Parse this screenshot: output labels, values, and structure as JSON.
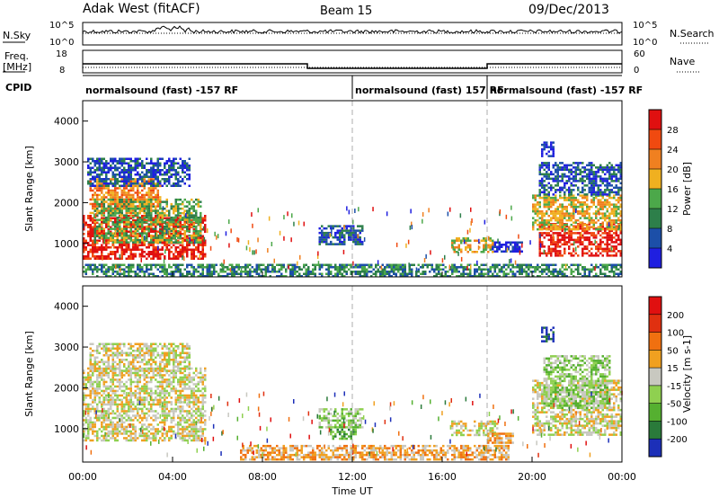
{
  "header": {
    "station": "Adak West (fitACF)",
    "beam": "Beam 15",
    "date": "09/Dec/2013"
  },
  "top_panels": {
    "nsky_label": "N.Sky",
    "nsky_ticks": [
      "10^5",
      "10^0"
    ],
    "nsearch_label": "N.Search",
    "nsearch_ticks": [
      "10^5",
      "10^0"
    ],
    "freq_label": "Freq.",
    "freq_unit": "[MHz]",
    "freq_ticks": [
      "18",
      "8"
    ],
    "nave_label": "Nave",
    "nave_ticks": [
      "60",
      "0"
    ],
    "cpid_label": "CPID",
    "cpid_segments": [
      {
        "label": "normalsound (fast) -157 RF",
        "start_h": 0,
        "end_h": 12
      },
      {
        "label": "normalsound (fast) 157 RF",
        "start_h": 12,
        "end_h": 18
      },
      {
        "label": "normalsound (fast) -157 RF",
        "start_h": 18,
        "end_h": 24
      }
    ],
    "freq_steps": [
      {
        "start_h": 0,
        "end_h": 10,
        "mhz": 12
      },
      {
        "start_h": 10,
        "end_h": 18,
        "mhz": 10
      },
      {
        "start_h": 18,
        "end_h": 24,
        "mhz": 12
      }
    ],
    "freq_range": [
      8,
      18
    ]
  },
  "power_colorbar": {
    "label": "Power [dB]",
    "ticks": [
      "28",
      "24",
      "20",
      "16",
      "12",
      "8",
      "4"
    ],
    "colors": [
      "#1f1fe0",
      "#1c4fa8",
      "#2d7f4a",
      "#4ca84a",
      "#f0b020",
      "#f08020",
      "#f04a10",
      "#e01010"
    ]
  },
  "velocity_colorbar": {
    "label": "Velocity [m s-1]",
    "ticks": [
      "200",
      "100",
      "50",
      "15",
      "-15",
      "-50",
      "-100",
      "-200"
    ],
    "colors": [
      "#1c2fb8",
      "#2a7a3a",
      "#55b030",
      "#8fd050",
      "#c8c8c0",
      "#f0a020",
      "#f07010",
      "#e03010",
      "#e01010"
    ]
  },
  "chart_data": [
    {
      "type": "heatmap",
      "name": "power",
      "ylabel": "Slant Range [km]",
      "xlim": [
        0,
        24
      ],
      "ylim": [
        180,
        4500
      ],
      "yticks": [
        "4000",
        "3000",
        "2000",
        "1000"
      ],
      "regions": [
        {
          "t0": 0.0,
          "t1": 5.5,
          "r0": 600,
          "r1": 1700,
          "level": 7
        },
        {
          "t0": 0.3,
          "t1": 3.5,
          "r0": 1700,
          "r1": 2600,
          "level": 5
        },
        {
          "t0": 0.5,
          "t1": 5.3,
          "r0": 1000,
          "r1": 2100,
          "level": 3
        },
        {
          "t0": 0.2,
          "t1": 4.8,
          "r0": 2400,
          "r1": 3100,
          "level": 1
        },
        {
          "t0": 10.5,
          "t1": 12.5,
          "r0": 950,
          "r1": 1450,
          "level": 1
        },
        {
          "t0": 16.4,
          "t1": 18.3,
          "r0": 750,
          "r1": 1150,
          "level": 4
        },
        {
          "t0": 18.2,
          "t1": 19.6,
          "r0": 750,
          "r1": 1050,
          "level": 0
        },
        {
          "t0": 20.3,
          "t1": 24.0,
          "r0": 700,
          "r1": 1500,
          "level": 7
        },
        {
          "t0": 20.0,
          "t1": 24.0,
          "r0": 1300,
          "r1": 2200,
          "level": 4
        },
        {
          "t0": 20.3,
          "t1": 24.0,
          "r0": 2200,
          "r1": 3000,
          "level": 1
        },
        {
          "t0": 20.4,
          "t1": 21.0,
          "r0": 3100,
          "r1": 3500,
          "level": 0
        },
        {
          "t0": 0.0,
          "t1": 24.0,
          "r0": 180,
          "r1": 500,
          "level": 2
        }
      ]
    },
    {
      "type": "heatmap",
      "name": "velocity",
      "ylabel": "Slant Range [km]",
      "xlabel": "Time UT",
      "xlim": [
        0,
        24
      ],
      "ylim": [
        180,
        4500
      ],
      "xticks": [
        "00:00",
        "04:00",
        "08:00",
        "12:00",
        "16:00",
        "20:00",
        "00:00"
      ],
      "yticks": [
        "4000",
        "3000",
        "2000",
        "1000"
      ],
      "regions": [
        {
          "t0": 0.0,
          "t1": 5.5,
          "r0": 700,
          "r1": 2500,
          "level": 4
        },
        {
          "t0": 0.3,
          "t1": 4.8,
          "r0": 2400,
          "r1": 3100,
          "level": 4
        },
        {
          "t0": 10.5,
          "t1": 12.5,
          "r0": 1000,
          "r1": 1500,
          "level": 3
        },
        {
          "t0": 11.0,
          "t1": 12.2,
          "r0": 700,
          "r1": 1000,
          "level": 2
        },
        {
          "t0": 16.4,
          "t1": 18.5,
          "r0": 800,
          "r1": 1200,
          "level": 4
        },
        {
          "t0": 18.0,
          "t1": 19.2,
          "r0": 650,
          "r1": 900,
          "level": 5
        },
        {
          "t0": 20.0,
          "t1": 24.0,
          "r0": 800,
          "r1": 2200,
          "level": 4
        },
        {
          "t0": 20.5,
          "t1": 23.5,
          "r0": 1500,
          "r1": 2800,
          "level": 3
        },
        {
          "t0": 20.4,
          "t1": 21.0,
          "r0": 3100,
          "r1": 3500,
          "level": 0
        },
        {
          "t0": 7.0,
          "t1": 19.0,
          "r0": 200,
          "r1": 600,
          "level": 5
        }
      ]
    }
  ]
}
